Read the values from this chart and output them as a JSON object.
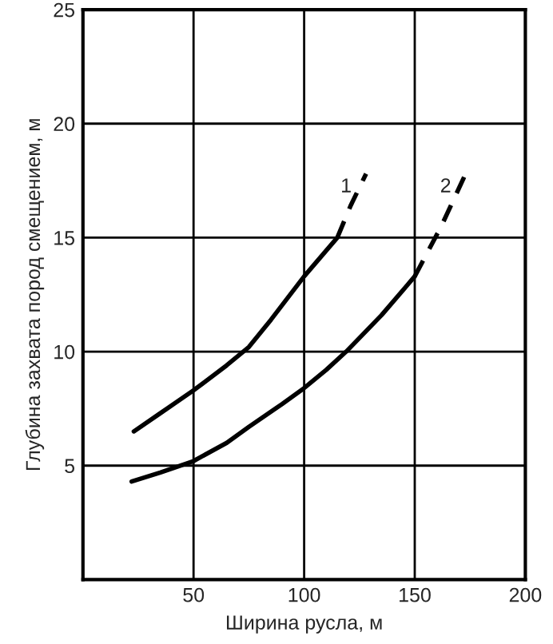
{
  "chart_data": {
    "type": "line",
    "xlabel": "Ширина русла, м",
    "ylabel": "Глубина захвата пород смещением, м",
    "series": [
      {
        "color": "#000000",
        "line_style": "solid",
        "x": [
          23,
          35,
          50,
          65,
          75,
          85,
          100,
          115
        ],
        "values": [
          6.5,
          7.3,
          8.3,
          9.4,
          10.2,
          11.4,
          13.3,
          15.0
        ]
      },
      {
        "name": "1",
        "color": "#000000",
        "line_style": "dashed",
        "x": [
          115,
          121,
          128
        ],
        "values": [
          15.0,
          16.4,
          17.8
        ]
      },
      {
        "color": "#000000",
        "line_style": "solid",
        "x": [
          22,
          35,
          50,
          65,
          75,
          90,
          100,
          110,
          119,
          135,
          150
        ],
        "values": [
          4.3,
          4.7,
          5.2,
          6.0,
          6.7,
          7.7,
          8.4,
          9.2,
          10.0,
          11.6,
          13.3
        ]
      },
      {
        "name": "2",
        "color": "#000000",
        "line_style": "dashed",
        "x": [
          150,
          162,
          173
        ],
        "values": [
          13.3,
          15.5,
          17.8
        ]
      }
    ],
    "xlim": [
      0,
      200
    ],
    "ylim": [
      0,
      25
    ],
    "xticks": [
      50,
      100,
      150,
      200
    ],
    "yticks": [
      5,
      10,
      15,
      20,
      25
    ],
    "grid": true,
    "marker": "none",
    "legend": false
  }
}
